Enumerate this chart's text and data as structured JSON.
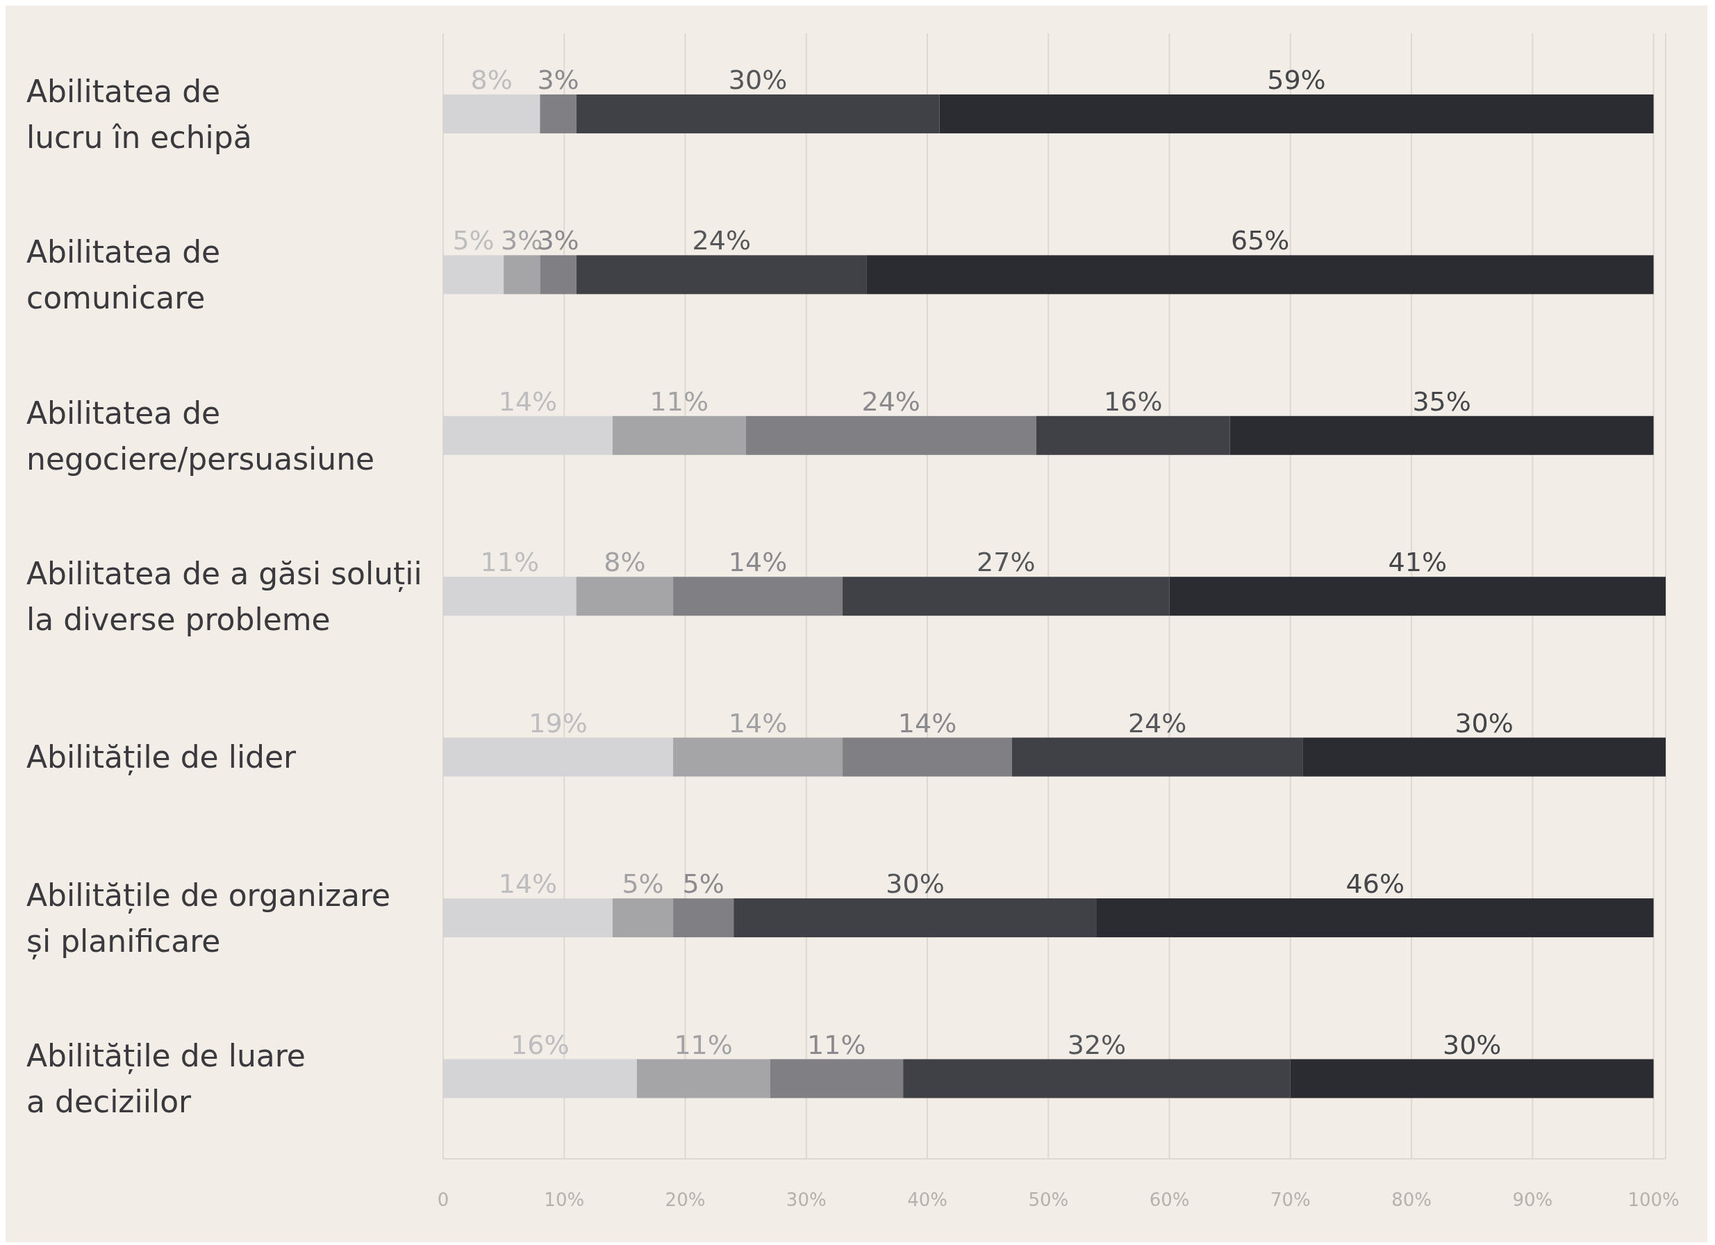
{
  "chart_data": {
    "type": "bar",
    "orientation": "horizontal",
    "stacked": true,
    "categories": [
      "Abilitatea de\nlucru în echipă",
      "Abilitatea de\ncomunicare",
      "Abilitatea de\nnegociere/persuasiune",
      "Abilitatea de a găsi soluții\nla diverse probleme",
      "Abilitățile de lider",
      "Abilitățile de organizare\nși planificare",
      "Abilitățile de luare\na deciziilor"
    ],
    "series": [
      {
        "color": "#d4d4d6",
        "values": [
          8,
          5,
          14,
          11,
          19,
          14,
          16
        ],
        "value_labels": [
          "8%",
          "5%",
          "14%",
          "11%",
          "19%",
          "14%",
          "16%"
        ]
      },
      {
        "color": "#a5a5a8",
        "values": [
          null,
          3,
          11,
          8,
          14,
          5,
          11
        ],
        "value_labels": [
          null,
          "3%",
          "11%",
          "8%",
          "14%",
          "5%",
          "11%"
        ]
      },
      {
        "color": "#808084",
        "values": [
          3,
          3,
          24,
          14,
          14,
          5,
          11
        ],
        "value_labels": [
          "3%",
          "3%",
          "24%",
          "14%",
          "14%",
          "5%",
          "11%"
        ]
      },
      {
        "color": "#404146",
        "values": [
          30,
          24,
          16,
          27,
          24,
          30,
          32
        ],
        "value_labels": [
          "30%",
          "24%",
          "16%",
          "27%",
          "24%",
          "30%",
          "32%"
        ]
      },
      {
        "color": "#2b2c31",
        "values": [
          59,
          65,
          35,
          41,
          30,
          46,
          30
        ],
        "value_labels": [
          "59%",
          "65%",
          "35%",
          "41%",
          "30%",
          "46%",
          "30%"
        ]
      }
    ],
    "xlim": [
      0,
      101
    ],
    "xticks": [
      {
        "value": 0,
        "label": "0"
      },
      {
        "value": 10,
        "label": "10%"
      },
      {
        "value": 20,
        "label": "20%"
      },
      {
        "value": 30,
        "label": "30%"
      },
      {
        "value": 40,
        "label": "40%"
      },
      {
        "value": 50,
        "label": "50%"
      },
      {
        "value": 60,
        "label": "60%"
      },
      {
        "value": 70,
        "label": "70%"
      },
      {
        "value": 80,
        "label": "80%"
      },
      {
        "value": 90,
        "label": "90%"
      },
      {
        "value": 100,
        "label": "100%"
      }
    ],
    "grid": "x"
  }
}
